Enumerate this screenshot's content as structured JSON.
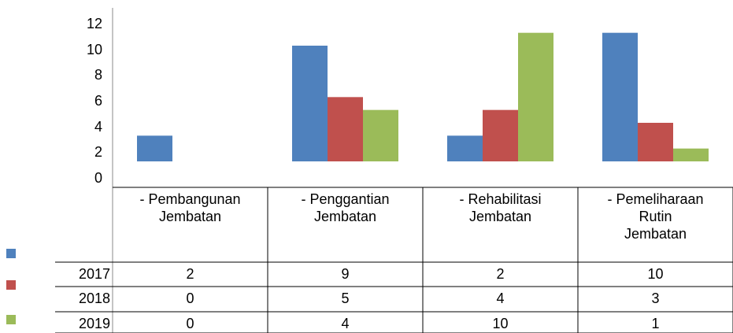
{
  "chart_data": {
    "type": "bar",
    "categories": [
      "- Pembangunan\nJembatan",
      "- Penggantian\nJembatan",
      "- Rehabilitasi\nJembatan",
      "- Pemeliharaan\nRutin\nJembatan"
    ],
    "series": [
      {
        "name": "2017",
        "color": "#4f81bd",
        "values": [
          2,
          9,
          2,
          10
        ]
      },
      {
        "name": "2018",
        "color": "#c0504d",
        "values": [
          0,
          5,
          4,
          3
        ]
      },
      {
        "name": "2019",
        "color": "#9bbb59",
        "values": [
          0,
          4,
          10,
          1
        ]
      }
    ],
    "ylim": [
      0,
      12
    ],
    "yticks": [
      0,
      2,
      4,
      6,
      8,
      10,
      12
    ],
    "grid": false,
    "data_table": true
  }
}
